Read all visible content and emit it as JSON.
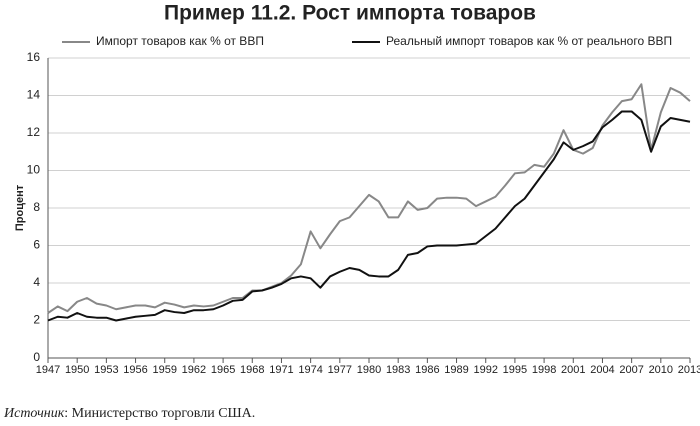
{
  "chart_data": {
    "type": "line",
    "title": "Пример 11.2. Рост импорта товаров",
    "y_label": "Процент",
    "source_label": "Источник",
    "source_text": ": Министерство торговли США.",
    "x": [
      1947,
      1948,
      1949,
      1950,
      1951,
      1952,
      1953,
      1954,
      1955,
      1956,
      1957,
      1958,
      1959,
      1960,
      1961,
      1962,
      1963,
      1964,
      1965,
      1966,
      1967,
      1968,
      1969,
      1970,
      1971,
      1972,
      1973,
      1974,
      1975,
      1976,
      1977,
      1978,
      1979,
      1980,
      1981,
      1982,
      1983,
      1984,
      1985,
      1986,
      1987,
      1988,
      1989,
      1990,
      1991,
      1992,
      1993,
      1994,
      1995,
      1996,
      1997,
      1998,
      1999,
      2000,
      2001,
      2002,
      2003,
      2004,
      2005,
      2006,
      2007,
      2008,
      2009,
      2010,
      2011,
      2012,
      2013
    ],
    "series": [
      {
        "name": "Импорт товаров как % от ВВП",
        "color": "#888888",
        "values": [
          2.4,
          2.75,
          2.5,
          3.0,
          3.2,
          2.9,
          2.8,
          2.6,
          2.7,
          2.8,
          2.8,
          2.7,
          2.95,
          2.85,
          2.7,
          2.8,
          2.75,
          2.8,
          3.0,
          3.2,
          3.2,
          3.6,
          3.6,
          3.8,
          4.0,
          4.4,
          5.0,
          6.75,
          5.85,
          6.6,
          7.3,
          7.5,
          8.1,
          8.7,
          8.35,
          7.5,
          7.5,
          8.35,
          7.9,
          8.0,
          8.5,
          8.55,
          8.55,
          8.5,
          8.1,
          8.35,
          8.6,
          9.2,
          9.85,
          9.9,
          10.3,
          10.2,
          10.9,
          12.15,
          11.1,
          10.9,
          11.2,
          12.4,
          13.1,
          13.7,
          13.8,
          14.6,
          11.1,
          13.1,
          14.4,
          14.15,
          13.7
        ]
      },
      {
        "name": "Реальный импорт товаров как % от реального ВВП",
        "color": "#111111",
        "values": [
          2.0,
          2.2,
          2.15,
          2.4,
          2.2,
          2.15,
          2.15,
          2.0,
          2.1,
          2.2,
          2.25,
          2.3,
          2.55,
          2.45,
          2.4,
          2.55,
          2.55,
          2.6,
          2.8,
          3.05,
          3.1,
          3.55,
          3.6,
          3.75,
          3.95,
          4.25,
          4.35,
          4.25,
          3.75,
          4.35,
          4.6,
          4.8,
          4.7,
          4.4,
          4.35,
          4.35,
          4.7,
          5.5,
          5.6,
          5.95,
          6.0,
          6.0,
          6.0,
          6.05,
          6.1,
          6.5,
          6.9,
          7.5,
          8.1,
          8.5,
          9.2,
          9.9,
          10.6,
          11.5,
          11.1,
          11.3,
          11.55,
          12.3,
          12.7,
          13.15,
          13.15,
          12.7,
          11.0,
          12.35,
          12.8,
          12.7,
          12.6
        ]
      }
    ],
    "xlim": [
      1947,
      2013
    ],
    "xticks": [
      1947,
      1950,
      1953,
      1956,
      1959,
      1962,
      1965,
      1968,
      1971,
      1974,
      1977,
      1980,
      1983,
      1986,
      1989,
      1992,
      1995,
      1998,
      2001,
      2004,
      2007,
      2010,
      2013
    ],
    "ylim": [
      0,
      16
    ],
    "yticks": [
      0,
      2,
      4,
      6,
      8,
      10,
      12,
      14,
      16
    ],
    "grid": true
  }
}
